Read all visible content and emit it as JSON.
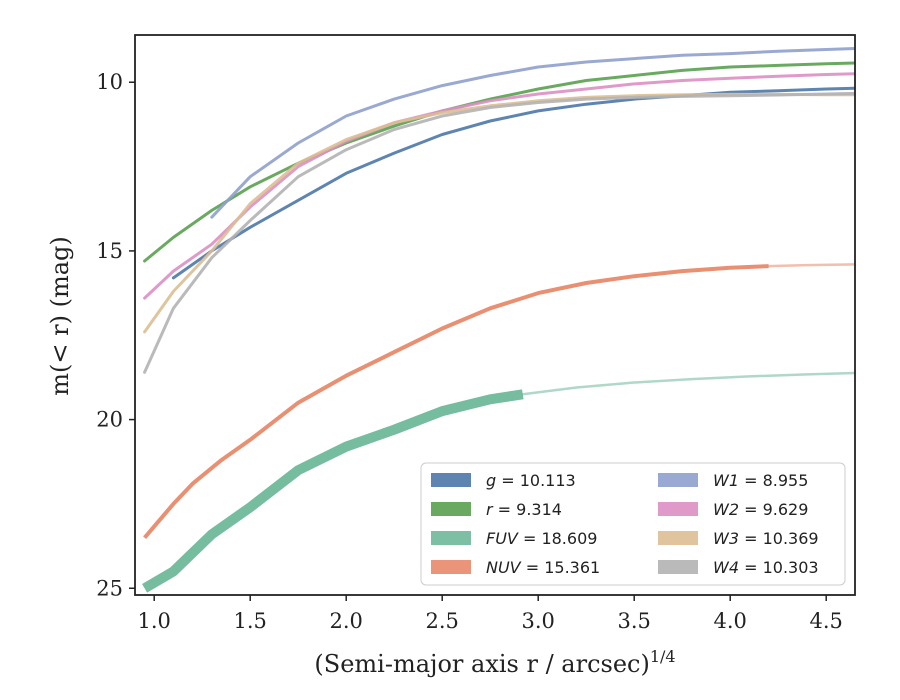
{
  "chart_data": {
    "type": "line",
    "xlabel": "(Semi-major axis r / arcsec)",
    "xlabel_superscript": "1/4",
    "ylabel": "m(< r) (mag)",
    "xlim": [
      0.9,
      4.65
    ],
    "ylim": [
      25.2,
      8.6
    ],
    "y_inverted": true,
    "x_ticks": [
      1.0,
      1.5,
      2.0,
      2.5,
      3.0,
      3.5,
      4.0,
      4.5
    ],
    "x_tick_labels": [
      "1.0",
      "1.5",
      "2.0",
      "2.5",
      "3.0",
      "3.5",
      "4.0",
      "4.5"
    ],
    "y_ticks": [
      10,
      15,
      20,
      25
    ],
    "y_tick_labels": [
      "10",
      "15",
      "20",
      "25"
    ],
    "grid": false,
    "legend_position": "lower-right",
    "series": [
      {
        "name": "g",
        "label": "= 10.113",
        "color": "#4c78a8",
        "style": "band",
        "width": 3,
        "x": [
          1.1,
          1.3,
          1.5,
          1.75,
          2.0,
          2.25,
          2.5,
          2.75,
          3.0,
          3.25,
          3.5,
          3.75,
          4.0,
          4.25,
          4.5,
          4.65
        ],
        "y": [
          15.8,
          15.0,
          14.3,
          13.5,
          12.7,
          12.1,
          11.55,
          11.15,
          10.85,
          10.65,
          10.5,
          10.4,
          10.3,
          10.25,
          10.2,
          10.18
        ]
      },
      {
        "name": "r",
        "label": "= 9.314",
        "color": "#59a14f",
        "style": "band",
        "width": 3,
        "x": [
          0.95,
          1.1,
          1.3,
          1.5,
          1.75,
          2.0,
          2.25,
          2.5,
          2.75,
          3.0,
          3.25,
          3.5,
          3.75,
          4.0,
          4.25,
          4.5,
          4.65
        ],
        "y": [
          15.3,
          14.6,
          13.8,
          13.1,
          12.4,
          11.8,
          11.3,
          10.85,
          10.5,
          10.2,
          9.95,
          9.8,
          9.65,
          9.55,
          9.5,
          9.45,
          9.43
        ]
      },
      {
        "name": "FUV",
        "label": "= 18.609",
        "color": "#6fb89a",
        "style": "band",
        "width": 10,
        "faint_from": 2.92,
        "x": [
          0.95,
          1.1,
          1.3,
          1.5,
          1.75,
          2.0,
          2.25,
          2.5,
          2.75,
          2.92,
          3.2,
          3.5,
          3.8,
          4.1,
          4.4,
          4.65
        ],
        "y": [
          25.0,
          24.5,
          23.4,
          22.6,
          21.5,
          20.8,
          20.3,
          19.75,
          19.4,
          19.25,
          19.05,
          18.9,
          18.8,
          18.72,
          18.66,
          18.62
        ]
      },
      {
        "name": "NUV",
        "label": "= 15.361",
        "color": "#e8896a",
        "style": "band",
        "width": 4,
        "faint_from": 4.2,
        "x": [
          0.95,
          1.1,
          1.2,
          1.35,
          1.5,
          1.75,
          2.0,
          2.25,
          2.5,
          2.75,
          3.0,
          3.25,
          3.5,
          3.75,
          4.0,
          4.2,
          4.4,
          4.65
        ],
        "y": [
          23.5,
          22.5,
          21.9,
          21.2,
          20.6,
          19.5,
          18.7,
          18.0,
          17.3,
          16.7,
          16.25,
          15.95,
          15.75,
          15.6,
          15.5,
          15.45,
          15.42,
          15.4
        ]
      },
      {
        "name": "W1",
        "label": "= 8.955",
        "color": "#8fa0cc",
        "style": "line",
        "width": 3,
        "x": [
          1.3,
          1.5,
          1.75,
          2.0,
          2.25,
          2.5,
          2.75,
          3.0,
          3.25,
          3.5,
          3.75,
          4.0,
          4.25,
          4.5,
          4.65
        ],
        "y": [
          14.0,
          12.8,
          11.8,
          11.0,
          10.5,
          10.1,
          9.8,
          9.55,
          9.4,
          9.3,
          9.2,
          9.15,
          9.08,
          9.03,
          9.0
        ]
      },
      {
        "name": "W2",
        "label": "= 9.629",
        "color": "#dc8fc4",
        "style": "line",
        "width": 3,
        "x": [
          0.95,
          1.1,
          1.3,
          1.5,
          1.75,
          2.0,
          2.25,
          2.5,
          2.75,
          3.0,
          3.25,
          3.5,
          3.75,
          4.0,
          4.25,
          4.5,
          4.65
        ],
        "y": [
          16.4,
          15.6,
          14.8,
          13.7,
          12.5,
          11.75,
          11.2,
          10.85,
          10.55,
          10.35,
          10.2,
          10.05,
          9.95,
          9.88,
          9.82,
          9.77,
          9.75
        ]
      },
      {
        "name": "W3",
        "label": "= 10.369",
        "color": "#dcbe94",
        "style": "line",
        "width": 3,
        "x": [
          0.95,
          1.1,
          1.3,
          1.5,
          1.75,
          2.0,
          2.25,
          2.5,
          2.75,
          3.0,
          3.25,
          3.5,
          3.75,
          4.0,
          4.25,
          4.5,
          4.65
        ],
        "y": [
          17.4,
          16.2,
          15.0,
          13.6,
          12.4,
          11.7,
          11.2,
          10.9,
          10.7,
          10.55,
          10.45,
          10.4,
          10.37,
          10.36,
          10.36,
          10.37,
          10.37
        ]
      },
      {
        "name": "W4",
        "label": "= 10.303",
        "color": "#b3b3b3",
        "style": "line",
        "width": 3,
        "x": [
          0.95,
          1.1,
          1.3,
          1.5,
          1.75,
          2.0,
          2.25,
          2.5,
          2.75,
          3.0,
          3.25,
          3.5,
          3.75,
          4.0,
          4.25,
          4.5,
          4.65
        ],
        "y": [
          18.6,
          16.7,
          15.2,
          14.1,
          12.8,
          12.0,
          11.4,
          11.0,
          10.75,
          10.6,
          10.5,
          10.45,
          10.42,
          10.4,
          10.38,
          10.35,
          10.33
        ]
      }
    ]
  }
}
